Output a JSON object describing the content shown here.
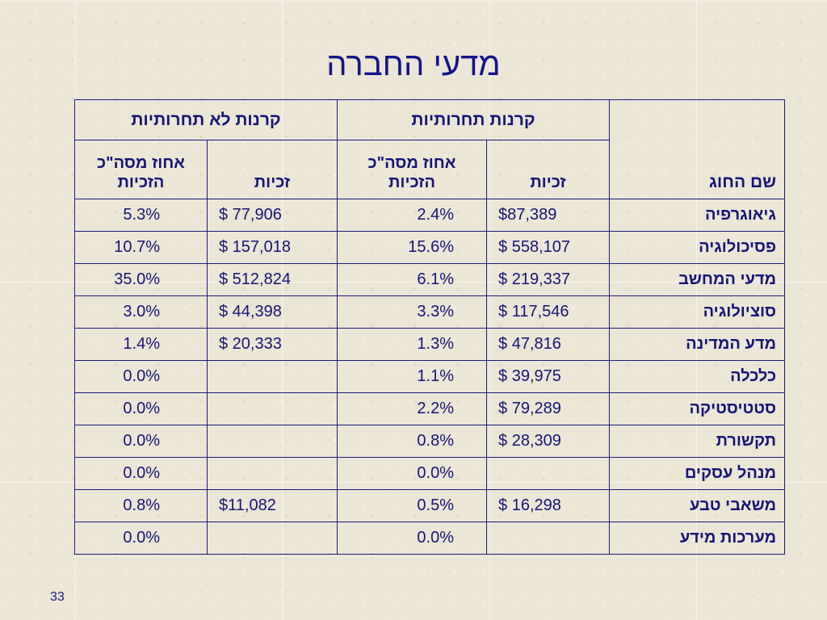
{
  "title": "מדעי החברה",
  "page_number": "33",
  "table": {
    "col_name_header": "שם החוג",
    "group_competitive": "קרנות תחרותיות",
    "group_noncompetitive": "קרנות לא תחרותיות",
    "sub_rights": "זכיות",
    "sub_percent_line1": "אחוז מסה\"כ",
    "sub_percent_line2": "הזכיות",
    "rows": [
      {
        "name": "גיאוגרפיה",
        "comp_amount": "$87,389",
        "comp_pct": "2.4%",
        "non_amount": "$ 77,906",
        "non_pct": "5.3%"
      },
      {
        "name": "פסיכולוגיה",
        "comp_amount": "$ 558,107",
        "comp_pct": "15.6%",
        "non_amount": "$ 157,018",
        "non_pct": "10.7%"
      },
      {
        "name": "מדעי המחשב",
        "comp_amount": "$ 219,337",
        "comp_pct": "6.1%",
        "non_amount": "$ 512,824",
        "non_pct": "35.0%"
      },
      {
        "name": "סוציולוגיה",
        "comp_amount": "$ 117,546",
        "comp_pct": "3.3%",
        "non_amount": "$ 44,398",
        "non_pct": "3.0%"
      },
      {
        "name": "מדע המדינה",
        "comp_amount": "$ 47,816",
        "comp_pct": "1.3%",
        "non_amount": "$ 20,333",
        "non_pct": "1.4%"
      },
      {
        "name": "כלכלה",
        "comp_amount": "$ 39,975",
        "comp_pct": "1.1%",
        "non_amount": "",
        "non_pct": "0.0%"
      },
      {
        "name": "סטטיסטיקה",
        "comp_amount": "$ 79,289",
        "comp_pct": "2.2%",
        "non_amount": "",
        "non_pct": "0.0%"
      },
      {
        "name": "תקשורת",
        "comp_amount": "$ 28,309",
        "comp_pct": "0.8%",
        "non_amount": "",
        "non_pct": "0.0%"
      },
      {
        "name": "מנהל עסקים",
        "comp_amount": "",
        "comp_pct": "0.0%",
        "non_amount": "",
        "non_pct": "0.0%"
      },
      {
        "name": "משאבי טבע",
        "comp_amount": "$ 16,298",
        "comp_pct": "0.5%",
        "non_amount": "$11,082",
        "non_pct": "0.8%"
      },
      {
        "name": "מערכות מידע",
        "comp_amount": "",
        "comp_pct": "0.0%",
        "non_amount": "",
        "non_pct": "0.0%"
      }
    ]
  }
}
